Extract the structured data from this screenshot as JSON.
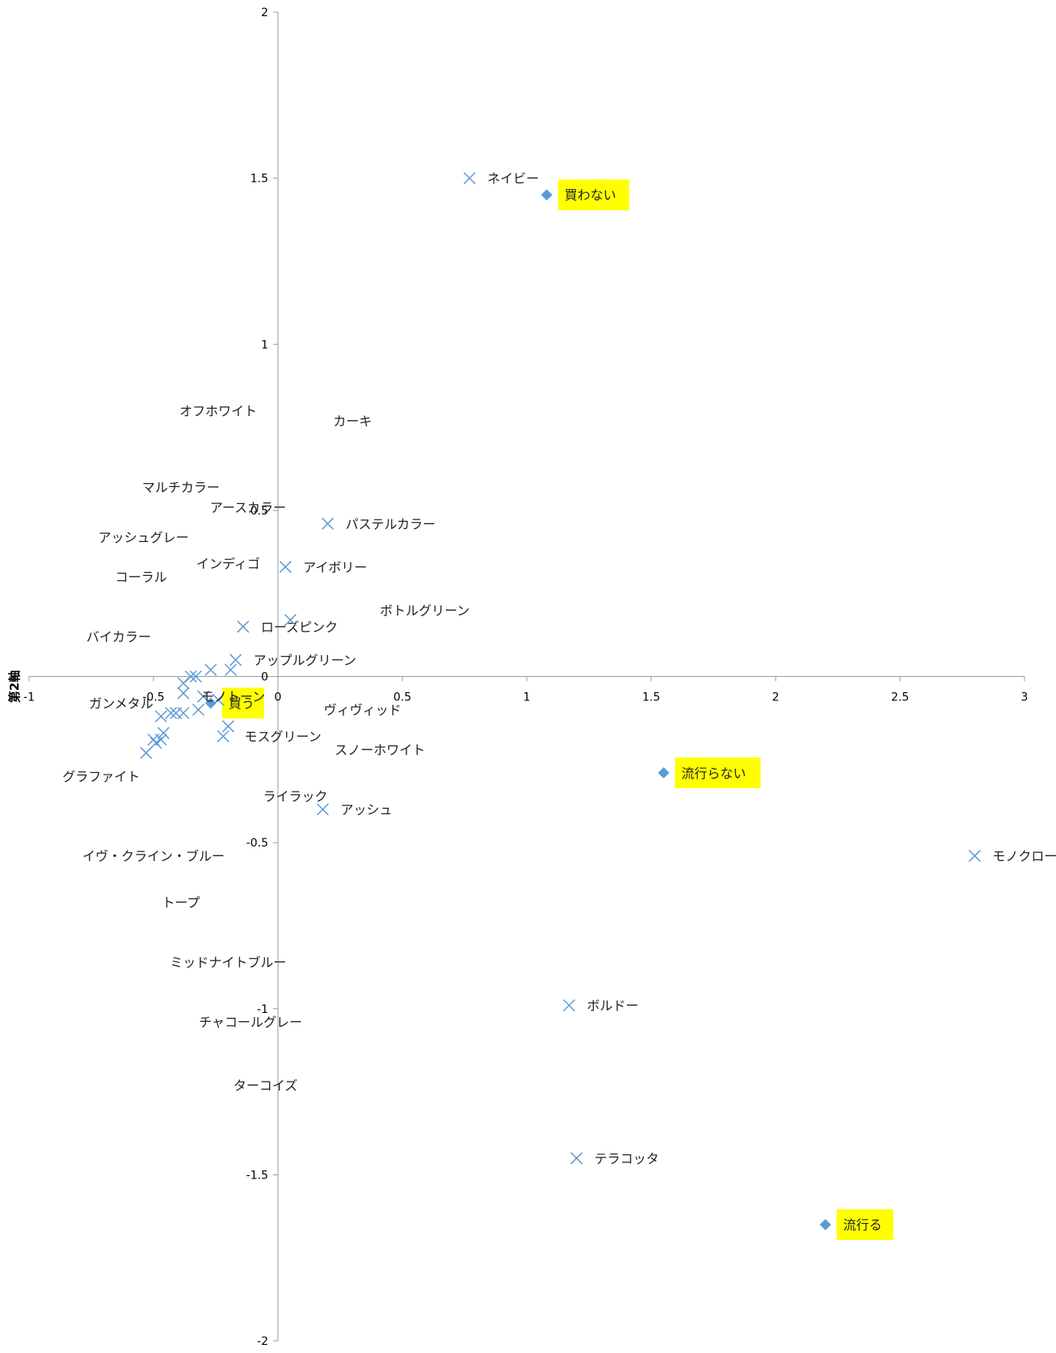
{
  "chart_data": {
    "type": "scatter",
    "title": "",
    "xlabel": "",
    "ylabel": "第2軸",
    "xlim": [
      -1,
      3
    ],
    "ylim": [
      -2,
      2
    ],
    "xticks": [
      "-1",
      "-0.5",
      "0",
      "0.5",
      "1",
      "1.5",
      "2",
      "2.5",
      "3"
    ],
    "yticks": [
      "2",
      "1.5",
      "1",
      "0.5",
      "0",
      "-0.5",
      "-1",
      "-1.5",
      "-2"
    ],
    "grid": false,
    "colors": {
      "marker": "#5b9bd5",
      "highlight": "#ffff00",
      "axis": "#999999"
    },
    "series": [
      {
        "marker": "diamond",
        "points": [
          {
            "x": 1.08,
            "y": 1.45,
            "label": "買わない",
            "highlight": true
          },
          {
            "x": 1.55,
            "y": -0.29,
            "label": "流行らない",
            "highlight": true
          },
          {
            "x": 2.2,
            "y": -1.65,
            "label": "流行る",
            "highlight": true
          },
          {
            "x": -0.27,
            "y": -0.08,
            "label": "買う",
            "highlight": true
          }
        ]
      },
      {
        "marker": "x",
        "points": [
          {
            "x": 0.77,
            "y": 1.5,
            "label": "ネイビー"
          },
          {
            "x": 0.2,
            "y": 0.46,
            "label": "パステルカラー"
          },
          {
            "x": 0.03,
            "y": 0.33,
            "label": "アイボリー"
          },
          {
            "x": -0.14,
            "y": 0.15,
            "label": "ローズピンク"
          },
          {
            "x": 0.05,
            "y": 0.17,
            "label": ""
          },
          {
            "x": -0.17,
            "y": 0.05,
            "label": "アップルグリーン"
          },
          {
            "x": -0.19,
            "y": 0.02,
            "label": ""
          },
          {
            "x": -0.27,
            "y": 0.02,
            "label": ""
          },
          {
            "x": -0.33,
            "y": 0.0,
            "label": ""
          },
          {
            "x": -0.35,
            "y": 0.0,
            "label": ""
          },
          {
            "x": -0.38,
            "y": -0.02,
            "label": ""
          },
          {
            "x": -0.3,
            "y": -0.06,
            "label": ""
          },
          {
            "x": -0.38,
            "y": -0.05,
            "label": ""
          },
          {
            "x": -0.24,
            "y": -0.07,
            "label": ""
          },
          {
            "x": -0.32,
            "y": -0.1,
            "label": ""
          },
          {
            "x": -0.38,
            "y": -0.11,
            "label": ""
          },
          {
            "x": -0.41,
            "y": -0.11,
            "label": ""
          },
          {
            "x": -0.43,
            "y": -0.11,
            "label": ""
          },
          {
            "x": -0.47,
            "y": -0.12,
            "label": ""
          },
          {
            "x": -0.2,
            "y": -0.15,
            "label": ""
          },
          {
            "x": -0.22,
            "y": -0.18,
            "label": ""
          },
          {
            "x": -0.46,
            "y": -0.17,
            "label": ""
          },
          {
            "x": -0.47,
            "y": -0.19,
            "label": ""
          },
          {
            "x": -0.5,
            "y": -0.19,
            "label": ""
          },
          {
            "x": -0.49,
            "y": -0.2,
            "label": ""
          },
          {
            "x": -0.53,
            "y": -0.23,
            "label": ""
          },
          {
            "x": 0.18,
            "y": -0.4,
            "label": "アッシュ"
          },
          {
            "x": 2.8,
            "y": -0.54,
            "label": "モノクローム"
          },
          {
            "x": 1.17,
            "y": -0.99,
            "label": "ボルドー"
          },
          {
            "x": 1.2,
            "y": -1.45,
            "label": "テラコッタ"
          }
        ]
      }
    ],
    "annotations": [
      {
        "x": -0.24,
        "y": 0.8,
        "text": "オフホワイト"
      },
      {
        "x": 0.3,
        "y": 0.77,
        "text": "カーキ"
      },
      {
        "x": -0.39,
        "y": 0.57,
        "text": "マルチカラー"
      },
      {
        "x": -0.12,
        "y": 0.51,
        "text": "アースカラー"
      },
      {
        "x": -0.54,
        "y": 0.42,
        "text": "アッシュグレー"
      },
      {
        "x": -0.2,
        "y": 0.34,
        "text": "インディゴ"
      },
      {
        "x": -0.55,
        "y": 0.3,
        "text": "コーラル"
      },
      {
        "x": 0.59,
        "y": 0.2,
        "text": "ボトルグリーン"
      },
      {
        "x": -0.64,
        "y": 0.12,
        "text": "バイカラー"
      },
      {
        "x": -0.63,
        "y": -0.08,
        "text": "ガンメタル"
      },
      {
        "x": -0.18,
        "y": -0.06,
        "text": "モノトーン"
      },
      {
        "x": 0.34,
        "y": -0.1,
        "text": "ヴィヴィッド"
      },
      {
        "x": 0.02,
        "y": -0.18,
        "text": "モスグリーン"
      },
      {
        "x": 0.41,
        "y": -0.22,
        "text": "スノーホワイト"
      },
      {
        "x": -0.71,
        "y": -0.3,
        "text": "グラファイト"
      },
      {
        "x": 0.07,
        "y": -0.36,
        "text": "ライラック"
      },
      {
        "x": -0.5,
        "y": -0.54,
        "text": "イヴ・クライン・ブルー"
      },
      {
        "x": -0.39,
        "y": -0.68,
        "text": "トープ"
      },
      {
        "x": -0.2,
        "y": -0.86,
        "text": "ミッドナイトブルー"
      },
      {
        "x": -0.11,
        "y": -1.04,
        "text": "チャコールグレー"
      },
      {
        "x": -0.05,
        "y": -1.23,
        "text": "ターコイズ"
      }
    ]
  }
}
